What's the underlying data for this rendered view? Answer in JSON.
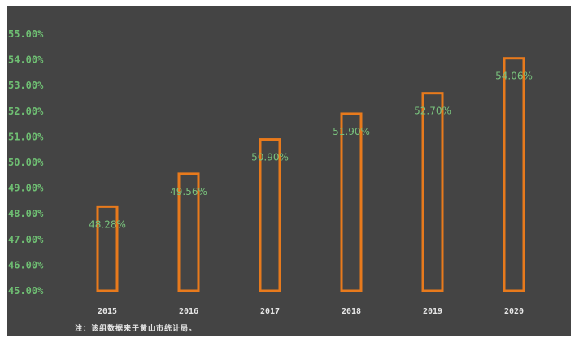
{
  "chart_data": {
    "type": "bar",
    "categories": [
      "2015",
      "2016",
      "2017",
      "2018",
      "2019",
      "2020"
    ],
    "values": [
      48.28,
      49.56,
      50.9,
      51.9,
      52.7,
      54.06
    ],
    "data_labels": [
      "48.28%",
      "49.56%",
      "50.90%",
      "51.90%",
      "52.70%",
      "54.06%"
    ],
    "ylim": [
      45,
      55
    ],
    "yticks": [
      "45.00%",
      "46.00%",
      "47.00%",
      "48.00%",
      "49.00%",
      "50.00%",
      "51.00%",
      "52.00%",
      "53.00%",
      "54.00%",
      "55.00%"
    ],
    "grid": false,
    "legend": "none"
  },
  "note": "注：该组数据来于黄山市统计局。",
  "colors": {
    "background": "#444444",
    "bar_outline": "#e87a1c",
    "tick_text": "#6fbf73",
    "label_text": "#79c27d",
    "category_text": "#e6e6e6"
  }
}
